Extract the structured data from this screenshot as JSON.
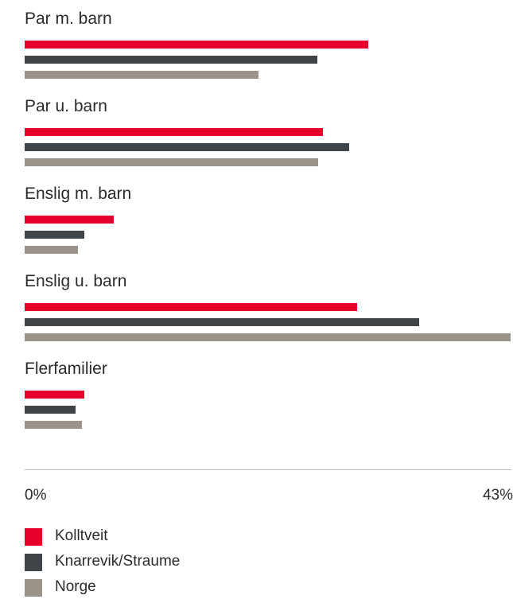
{
  "chart_data": {
    "type": "bar",
    "orientation": "horizontal",
    "categories": [
      "Par m. barn",
      "Par u. barn",
      "Enslig m. barn",
      "Enslig u. barn",
      "Flerfamilier"
    ],
    "series": [
      {
        "name": "Kolltveit",
        "color": "#e4002b",
        "values": [
          30.4,
          26.4,
          7.9,
          29.4,
          5.3
        ]
      },
      {
        "name": "Knarrevik/Straume",
        "color": "#3f4448",
        "values": [
          25.9,
          28.7,
          5.3,
          34.9,
          4.5
        ]
      },
      {
        "name": "Norge",
        "color": "#9b928a",
        "values": [
          20.7,
          26.0,
          4.7,
          43.0,
          5.1
        ]
      }
    ],
    "xlim": [
      0,
      43
    ],
    "x_tick_labels": [
      "0%",
      "43%"
    ],
    "legend_position": "bottom-left",
    "grid": false
  }
}
